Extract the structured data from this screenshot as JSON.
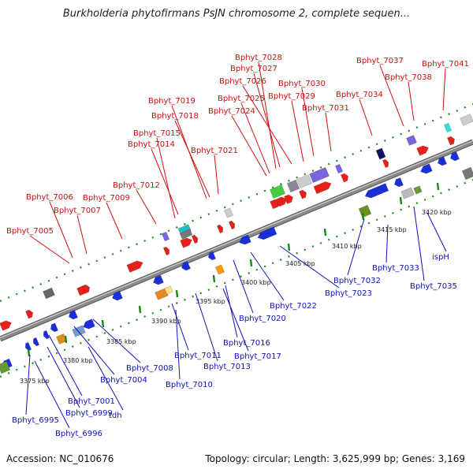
{
  "title": "Burkholderia phytofirmans PsJN chromosome 2, complete sequen...",
  "footer": {
    "accession": "Accession: NC_010676",
    "topology": "Topology: circular; Length: 3,625,999 bp; Genes: 3,169"
  },
  "colors": {
    "forward": "#e8201a",
    "reverse": "#1a2fd8",
    "forward_label": "#cc1111",
    "reverse_label": "#1111bb",
    "backbone": "#8a8a8a",
    "dots": "#1a8a1a",
    "ticks": "#138a13"
  },
  "tick_labels": [
    "3375 kbp",
    "3380 kbp",
    "3385 kbp",
    "3390 kbp",
    "3395 kbp",
    "3400 kbp",
    "3405 kbp",
    "3410 kbp",
    "3415 kbp",
    "3420 kbp"
  ],
  "forward_labels": [
    "Bphyt_7028",
    "Bphyt_7027",
    "Bphyt_7026",
    "Bphyt_7030",
    "Bphyt_7025",
    "Bphyt_7029",
    "Bphyt_7019",
    "Bphyt_7024",
    "Bphyt_7018",
    "Bphyt_7031",
    "Bphyt_7015",
    "Bphyt_7014",
    "Bphyt_7021",
    "Bphyt_7012",
    "Bphyt_7006",
    "Bphyt_7009",
    "Bphyt_7007",
    "Bphyt_7005",
    "Bphyt_7037",
    "Bphyt_7041",
    "Bphyt_7038",
    "Bphyt_7034"
  ],
  "reverse_labels": [
    "ispH",
    "Bphyt_7035",
    "Bphyt_7033",
    "Bphyt_7032",
    "Bphyt_7023",
    "Bphyt_7022",
    "Bphyt_7020",
    "Bphyt_7016",
    "Bphyt_7017",
    "Bphyt_7013",
    "Bphyt_7011",
    "Bphyt_7010",
    "Bphyt_7008",
    "Bphyt_7004",
    "tdh",
    "Bphyt_7001",
    "Bphyt_6999",
    "Bphyt_6995",
    "Bphyt_6996"
  ]
}
